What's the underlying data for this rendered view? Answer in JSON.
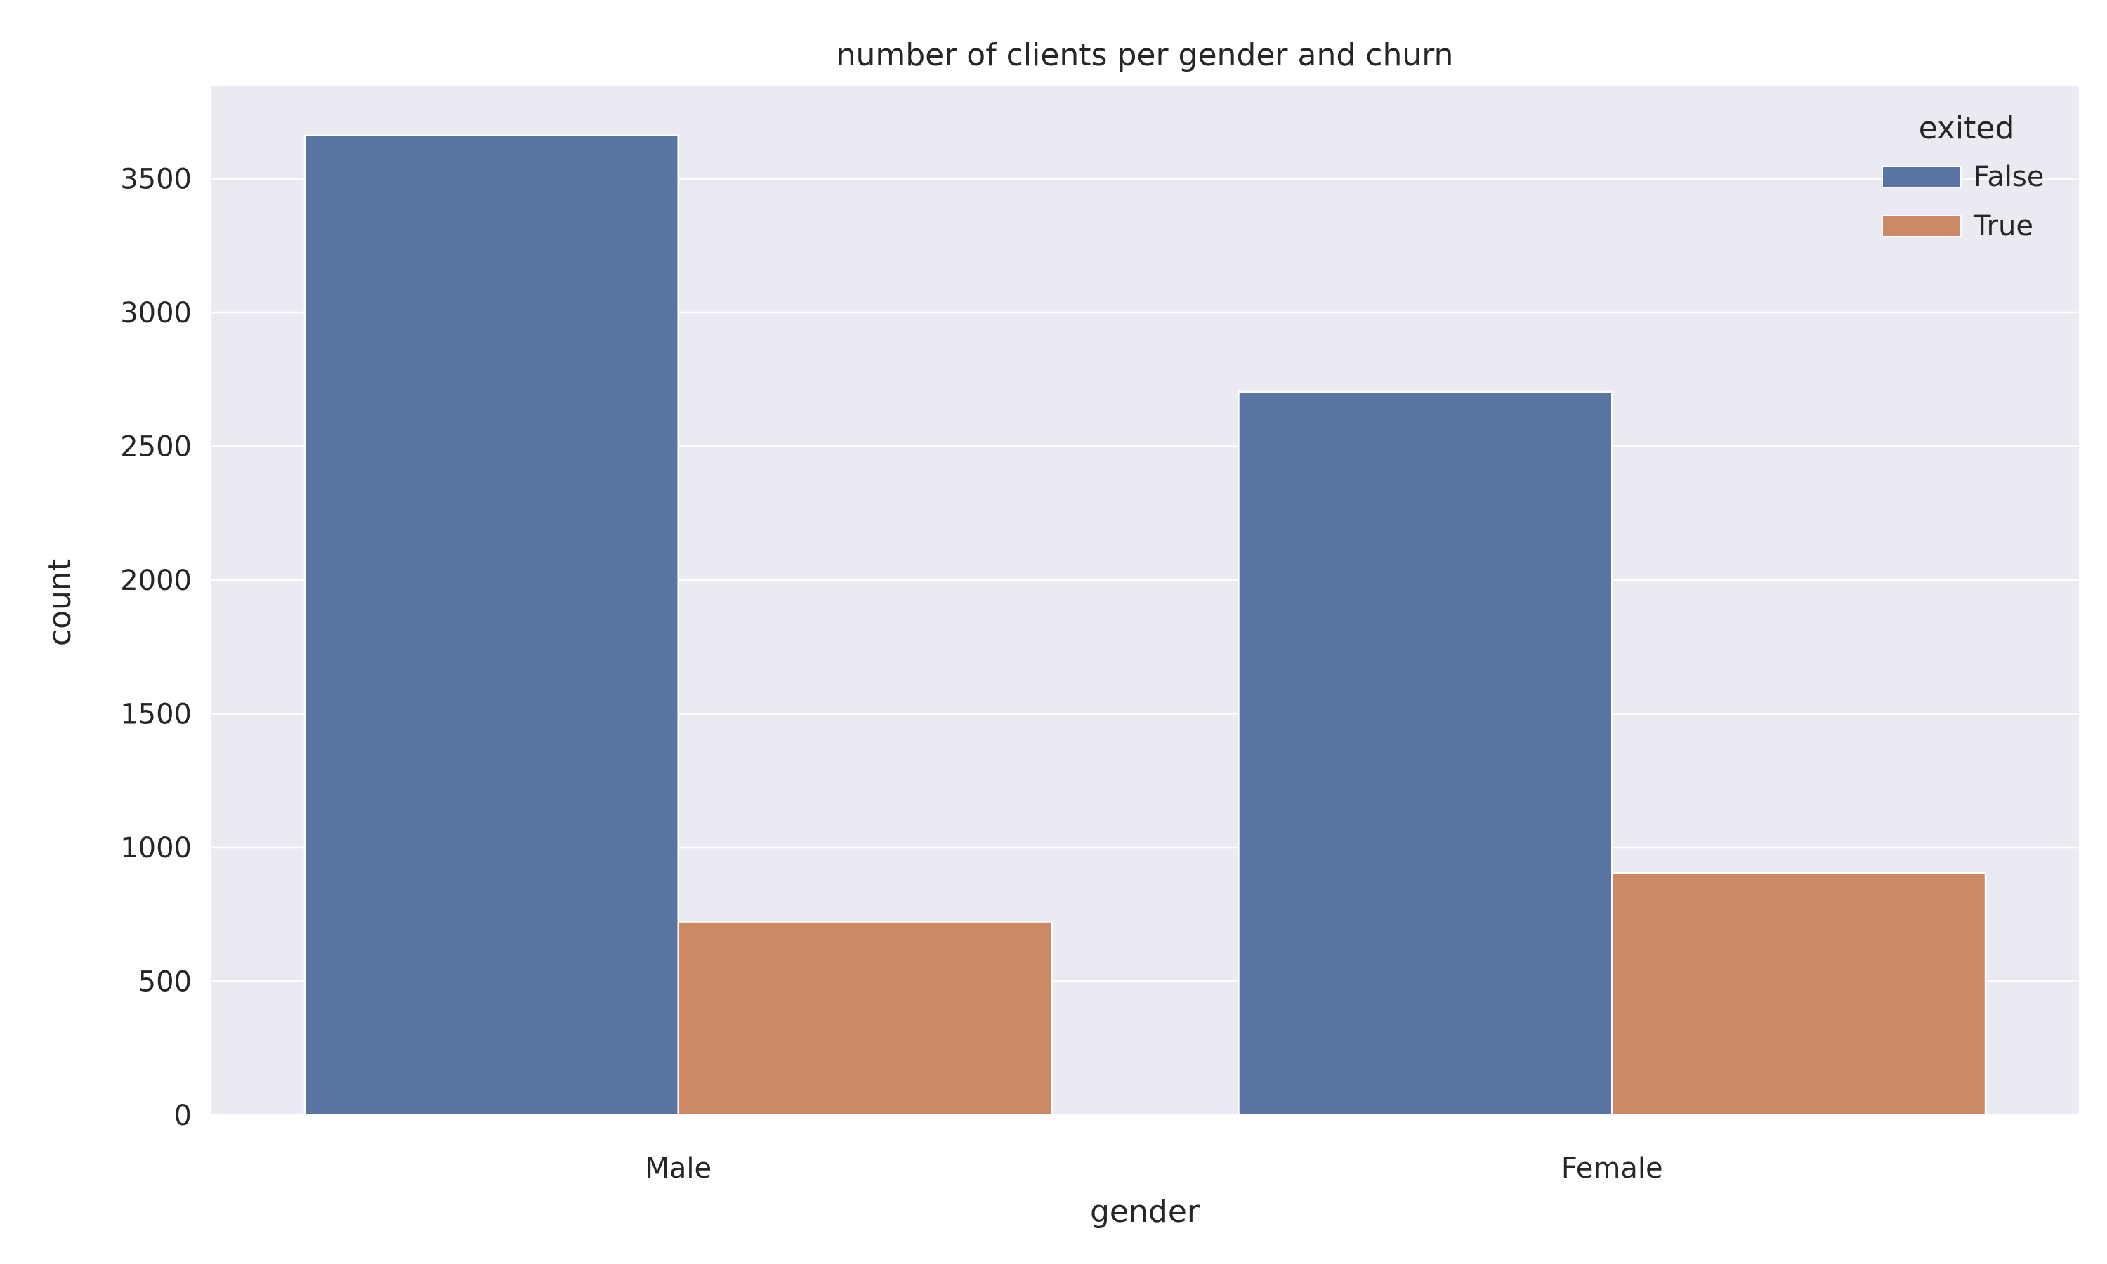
{
  "chart_data": {
    "type": "bar",
    "title": "number of clients per gender and churn",
    "xlabel": "gender",
    "ylabel": "count",
    "categories": [
      "Male",
      "Female"
    ],
    "series": [
      {
        "name": "False",
        "values": [
          3662,
          2704
        ],
        "color": "#5975a4"
      },
      {
        "name": "True",
        "values": [
          723,
          905
        ],
        "color": "#cc8963"
      }
    ],
    "ylim": [
      0,
      3845
    ],
    "yticks": [
      0,
      500,
      1000,
      1500,
      2000,
      2500,
      3000,
      3500
    ],
    "legend": {
      "title": "exited",
      "placement": "top-right"
    },
    "grid": true,
    "background": "#eaeaf2"
  }
}
